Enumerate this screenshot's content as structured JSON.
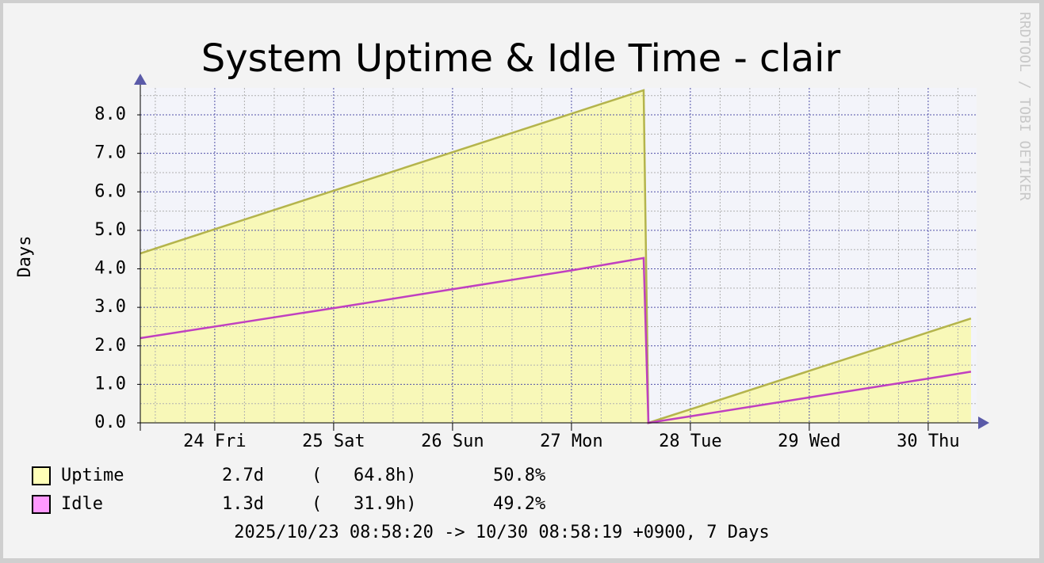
{
  "chart_data": {
    "type": "line",
    "title": "System Uptime & Idle Time - clair",
    "y_label": "Days",
    "watermark": "RRDTOOL / TOBI OETIKER",
    "footer": "2025/10/23 08:58:20 -> 10/30 08:58:19 +0900, 7 Days",
    "x": [
      23.374,
      24,
      25,
      26,
      27,
      27.607,
      27.647,
      28,
      29,
      30,
      30.36
    ],
    "series": [
      {
        "name": "Uptime",
        "color": "#b4b44c",
        "fill": "#f8f8b8",
        "legend_color": "#ffffb8",
        "values": [
          4.4,
          5.03,
          6.03,
          7.03,
          8.03,
          8.64,
          0,
          0.35,
          1.35,
          2.35,
          2.71
        ],
        "stats": [
          "2.7d",
          "(   64.8h)",
          "50.8%"
        ]
      },
      {
        "name": "Idle",
        "color": "#c040c0",
        "legend_color": "#ff99ff",
        "values": [
          2.2,
          2.5,
          2.98,
          3.47,
          3.96,
          4.28,
          0,
          0.17,
          0.66,
          1.15,
          1.33
        ],
        "stats": [
          "1.3d",
          "(   31.9h)",
          "49.2%"
        ]
      }
    ],
    "xlim": [
      23.374,
      30.374
    ],
    "xticks": [
      {
        "value": 24,
        "label": "24 Fri"
      },
      {
        "value": 25,
        "label": "25 Sat"
      },
      {
        "value": 26,
        "label": "26 Sun"
      },
      {
        "value": 27,
        "label": "27 Mon"
      },
      {
        "value": 28,
        "label": "28 Tue"
      },
      {
        "value": 29,
        "label": "29 Wed"
      },
      {
        "value": 30,
        "label": "30 Thu"
      }
    ],
    "minor_xticks": [
      23.5,
      23.75,
      24.25,
      24.5,
      24.75,
      25.25,
      25.5,
      25.75,
      26.25,
      26.5,
      26.75,
      27.25,
      27.5,
      27.75,
      28.25,
      28.5,
      28.75,
      29.25,
      29.5,
      29.75,
      30.25
    ],
    "ylim": [
      0,
      8.7
    ],
    "yticks": [
      {
        "value": 0,
        "label": "0.0"
      },
      {
        "value": 1,
        "label": "1.0"
      },
      {
        "value": 2,
        "label": "2.0"
      },
      {
        "value": 3,
        "label": "3.0"
      },
      {
        "value": 4,
        "label": "4.0"
      },
      {
        "value": 5,
        "label": "5.0"
      },
      {
        "value": 6,
        "label": "6.0"
      },
      {
        "value": 7,
        "label": "7.0"
      },
      {
        "value": 8,
        "label": "8.0"
      }
    ],
    "minor_yticks": [
      0.5,
      1.5,
      2.5,
      3.5,
      4.5,
      5.5,
      6.5,
      7.5,
      8.5
    ],
    "grid": true
  }
}
